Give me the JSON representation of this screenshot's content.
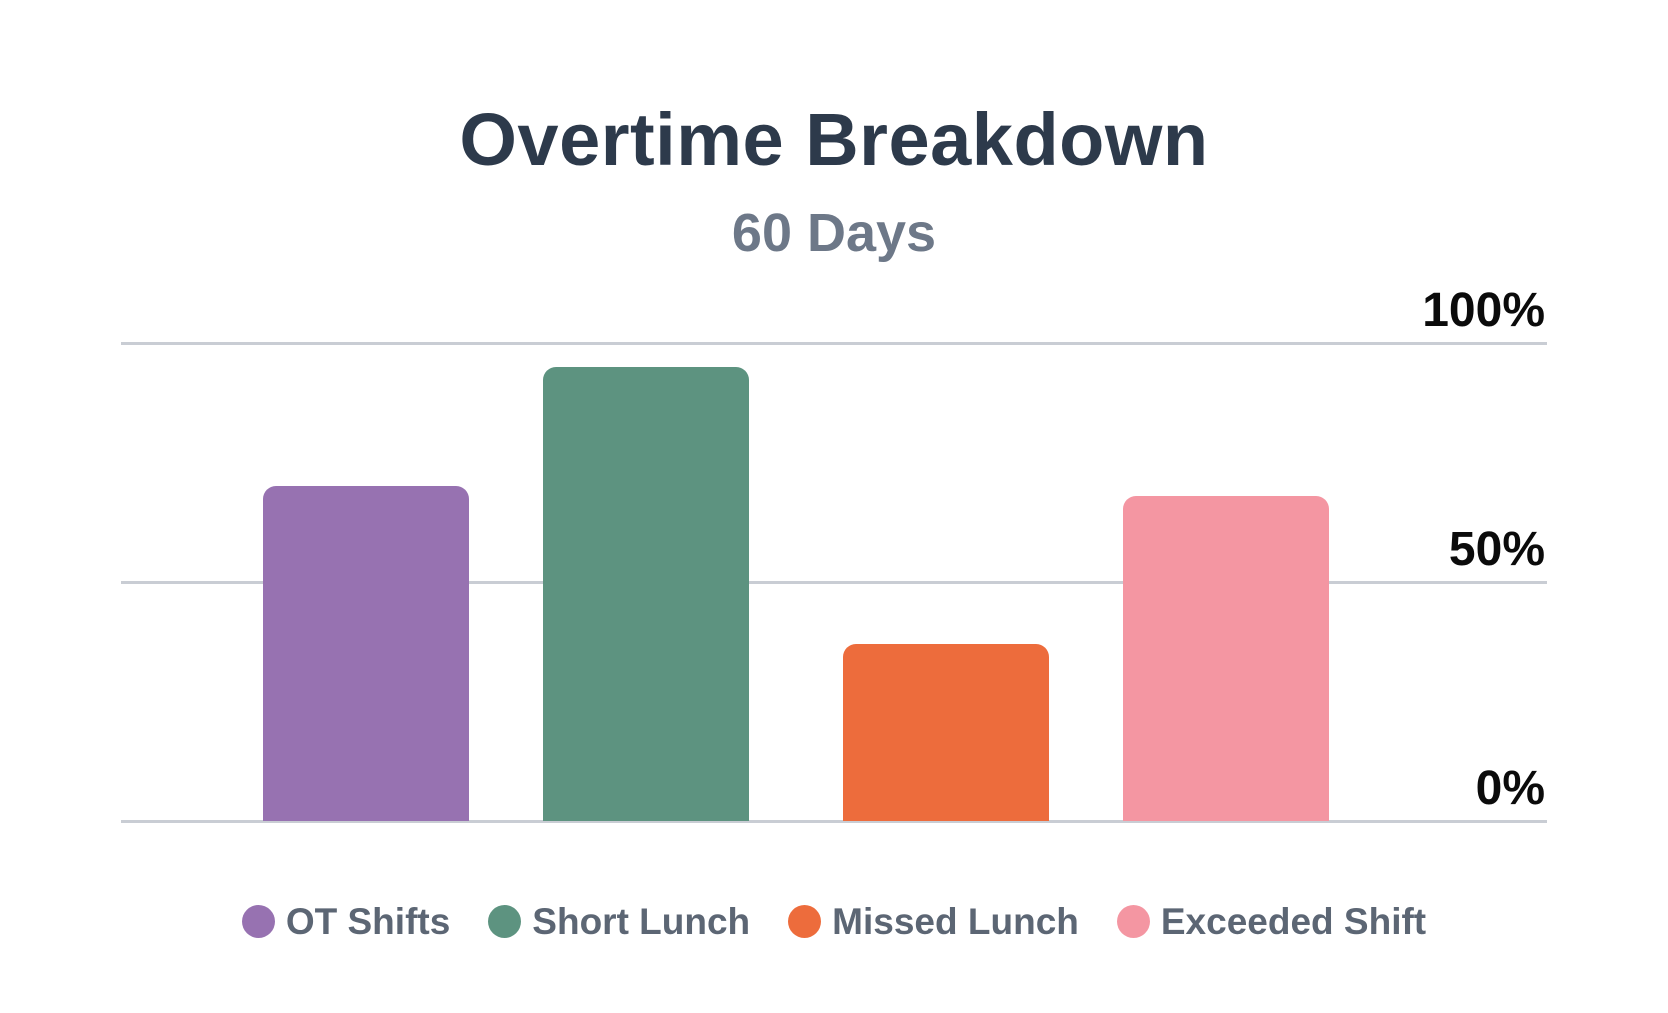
{
  "chart_data": {
    "type": "bar",
    "title": "Overtime Breakdown",
    "subtitle": "60 Days",
    "categories": [
      "OT Shifts",
      "Short Lunch",
      "Missed Lunch",
      "Exceeded Shift"
    ],
    "values": [
      70,
      95,
      37,
      68
    ],
    "unit": "%",
    "colors": [
      "#9772b1",
      "#5d9380",
      "#ed6c3c",
      "#f496a2"
    ],
    "xlabel": "",
    "ylabel": "",
    "ylim": [
      0,
      100
    ],
    "y_ticks": [
      100,
      50,
      0
    ],
    "y_tick_labels": [
      "100%",
      "50%",
      "0%"
    ],
    "grid": true,
    "gridline_orientation": "horizontal",
    "axis_label_side": "right",
    "legend_position": "bottom"
  },
  "colors": {
    "background": "#ffffff",
    "gridline": "#c9cdd4",
    "title_text": "#2d3a4b",
    "subtitle_text": "#6d7888",
    "axis_label_text": "#0b0b0b",
    "legend_text": "#5c6674"
  }
}
